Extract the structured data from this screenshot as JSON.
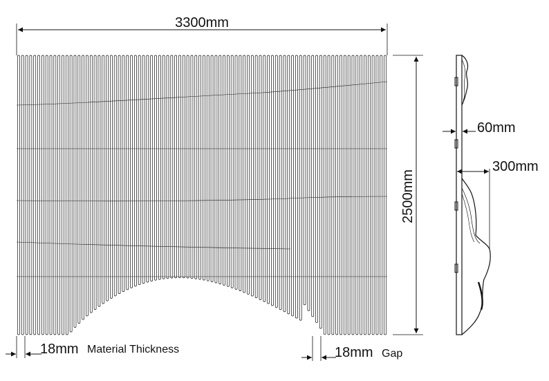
{
  "dimensions": {
    "width": "3300mm",
    "height": "2500mm",
    "depth_top": "60mm",
    "depth_bottom": "300mm",
    "thickness_value": "18mm",
    "thickness_label": "Material Thickness",
    "gap_value": "18mm",
    "gap_label": "Gap"
  },
  "colors": {
    "line": "#111111",
    "background": "#ffffff"
  }
}
